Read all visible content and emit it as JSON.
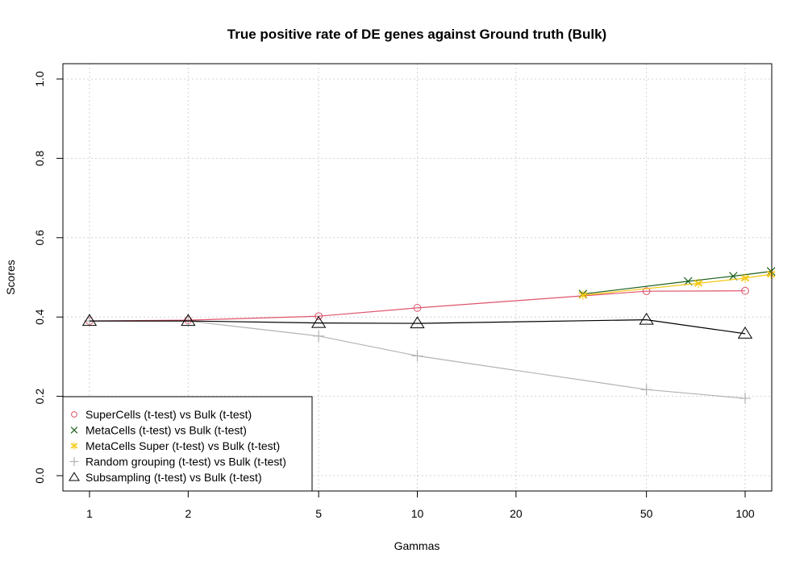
{
  "chart_data": {
    "type": "line",
    "title": "True positive rate of DE genes against Ground truth (Bulk)",
    "xlabel": "Gammas",
    "ylabel": "Scores",
    "x_scale": "log",
    "xlim": [
      1,
      120
    ],
    "ylim": [
      0,
      1
    ],
    "x_ticks": [
      1,
      2,
      5,
      10,
      20,
      50,
      100
    ],
    "y_ticks": [
      0.0,
      0.2,
      0.4,
      0.6,
      0.8,
      1.0
    ],
    "y_tick_labels": [
      "0.0",
      "0.2",
      "0.4",
      "0.6",
      "0.8",
      "1.0"
    ],
    "grid": true,
    "legend_position": "bottom-left",
    "series": [
      {
        "name": "SuperCells (t-test) vs Bulk (t-test)",
        "color": "#df536b",
        "marker": "circle",
        "x": [
          1,
          2,
          5,
          10,
          50,
          100
        ],
        "y": [
          0.39,
          0.392,
          0.402,
          0.423,
          0.465,
          0.466
        ]
      },
      {
        "name": "MetaCells (t-test) vs Bulk (t-test)",
        "color": "#1a5e1a",
        "marker": "cross",
        "x": [
          32,
          67,
          92,
          120
        ],
        "y": [
          0.458,
          0.49,
          0.503,
          0.515
        ]
      },
      {
        "name": "MetaCells Super (t-test) vs Bulk (t-test)",
        "color": "#f5c710",
        "marker": "asterisk",
        "x": [
          32,
          72,
          100,
          120
        ],
        "y": [
          0.455,
          0.485,
          0.498,
          0.508
        ]
      },
      {
        "name": "Random grouping (t-test) vs Bulk (t-test)",
        "color": "#b3b3b3",
        "marker": "plus",
        "x": [
          1,
          2,
          5,
          10,
          50,
          100
        ],
        "y": [
          0.39,
          0.39,
          0.352,
          0.302,
          0.217,
          0.195
        ]
      },
      {
        "name": "Subsampling (t-test) vs Bulk (t-test)",
        "color": "#000000",
        "marker": "triangle",
        "x": [
          1,
          2,
          5,
          10,
          50,
          100
        ],
        "y": [
          0.39,
          0.39,
          0.385,
          0.384,
          0.393,
          0.358
        ]
      }
    ]
  }
}
